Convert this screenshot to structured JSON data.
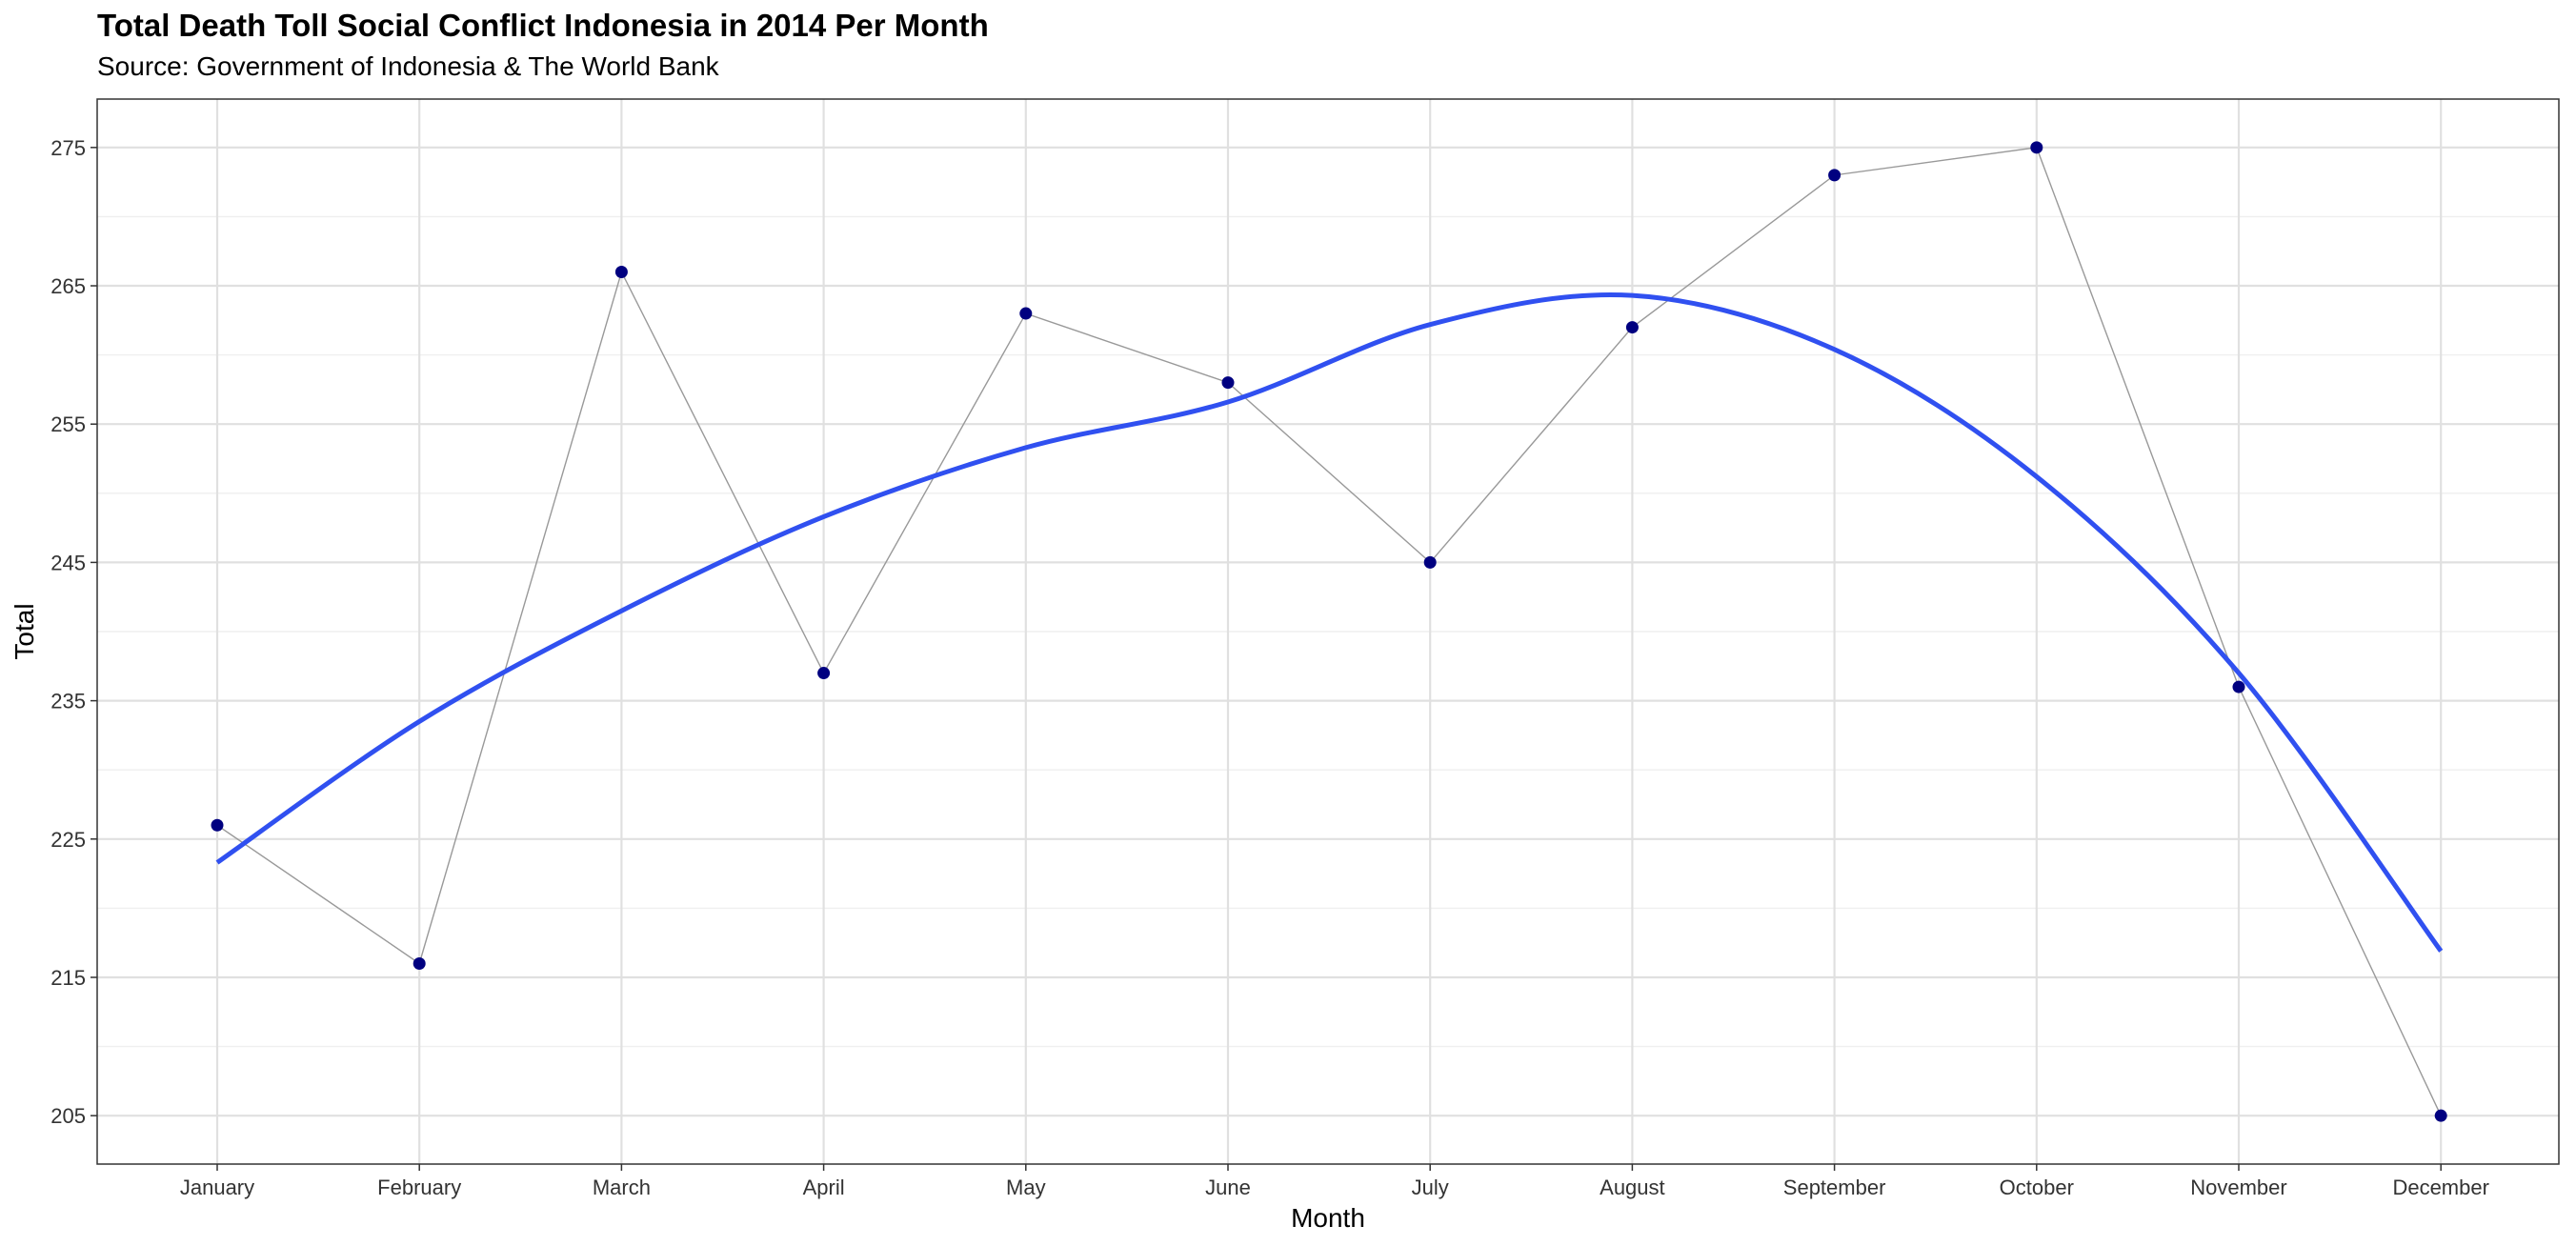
{
  "chart_data": {
    "type": "line",
    "title": "Total Death Toll Social Conflict Indonesia in 2014 Per Month",
    "subtitle": "Source: Government of Indonesia & The World Bank",
    "xlabel": "Month",
    "ylabel": "Total",
    "categories": [
      "January",
      "February",
      "March",
      "April",
      "May",
      "June",
      "July",
      "August",
      "September",
      "October",
      "November",
      "December"
    ],
    "series": [
      {
        "values": [
          226,
          216,
          266,
          237,
          263,
          258,
          245,
          262,
          273,
          275,
          236,
          205
        ],
        "color": "#999999",
        "marker_color": "#000080"
      },
      {
        "smooth": true,
        "values": [
          223.3,
          233.5,
          241.5,
          248.3,
          253.3,
          256.6,
          262.2,
          264.3,
          260.4,
          251.2,
          237.0,
          216.9
        ],
        "color": "#3050f0"
      }
    ],
    "yticks": [
      205,
      215,
      225,
      235,
      245,
      255,
      265,
      275
    ],
    "ylim": [
      201.5,
      278.5
    ],
    "grid": true
  }
}
